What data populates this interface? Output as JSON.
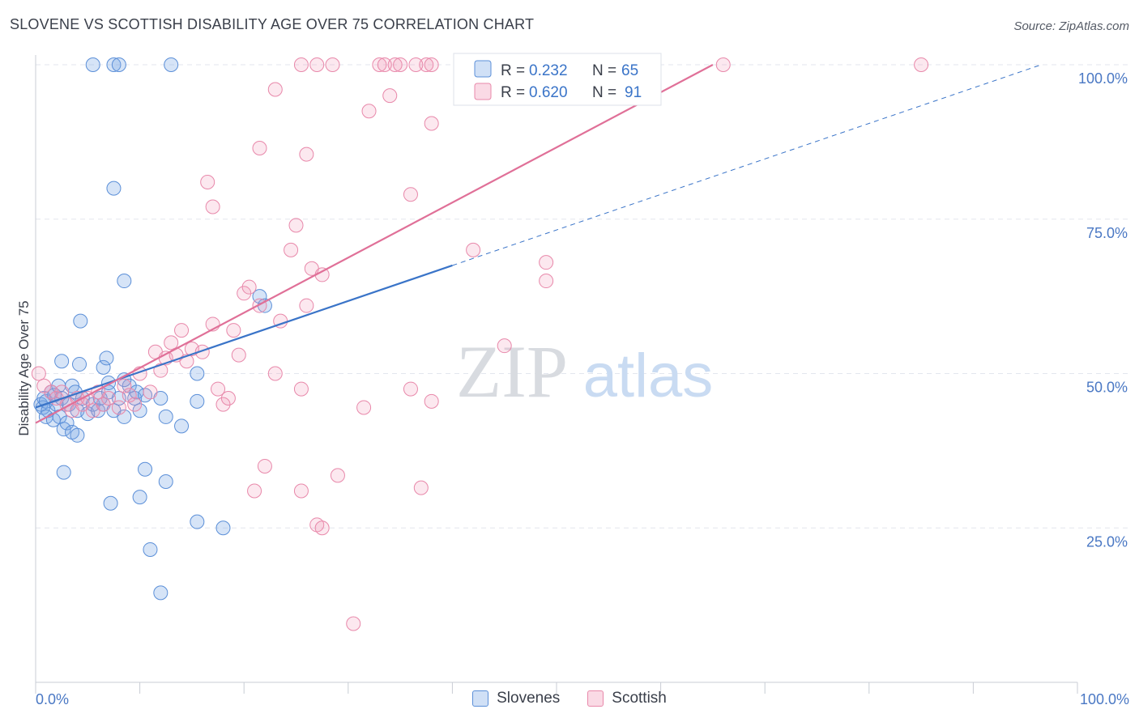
{
  "header": {
    "title": "SLOVENE VS SCOTTISH DISABILITY AGE OVER 75 CORRELATION CHART",
    "source": "Source: ZipAtlas.com"
  },
  "watermark": {
    "zip": "ZIP",
    "atlas": "atlas"
  },
  "colors": {
    "blue": "#5b8fd8",
    "blue_fill": "rgba(120,165,230,0.30)",
    "blue_line": "#3a74c8",
    "pink": "#e888aa",
    "pink_fill": "rgba(240,150,180,0.22)",
    "pink_line": "#e07098",
    "tick": "#4a78c4",
    "grid": "#e3e6ee"
  },
  "chart_data": {
    "type": "scatter",
    "title": "SLOVENE VS SCOTTISH DISABILITY AGE OVER 75 CORRELATION CHART",
    "xlabel": "",
    "ylabel": "Disability Age Over 75",
    "xlim": [
      0,
      100
    ],
    "ylim": [
      0,
      100
    ],
    "x_tick_labels": [
      "0.0%",
      "100.0%"
    ],
    "y_ticks": [
      {
        "value": 25,
        "label": "25.0%"
      },
      {
        "value": 50,
        "label": "50.0%"
      },
      {
        "value": 75,
        "label": "75.0%"
      },
      {
        "value": 100,
        "label": "100.0%"
      }
    ],
    "grid": true,
    "legend_position": "top-center",
    "series": [
      {
        "name": "Slovenes",
        "color": "#5b8fd8",
        "R": "0.232",
        "N": "65",
        "trend": {
          "x0": 0,
          "y0": 44.5,
          "x1": 100,
          "y1": 102.0,
          "solid_until": 40
        },
        "points": [
          [
            0.5,
            45
          ],
          [
            0.7,
            44.5
          ],
          [
            0.8,
            46
          ],
          [
            1,
            45.5
          ],
          [
            1.2,
            44
          ],
          [
            1.5,
            47
          ],
          [
            1.8,
            46.5
          ],
          [
            2,
            45
          ],
          [
            2.2,
            48
          ],
          [
            2.5,
            46
          ],
          [
            1,
            43
          ],
          [
            1.7,
            42.5
          ],
          [
            2.3,
            43
          ],
          [
            2.7,
            41
          ],
          [
            3,
            42
          ],
          [
            3.2,
            45
          ],
          [
            3.5,
            48
          ],
          [
            3.8,
            47
          ],
          [
            4,
            44
          ],
          [
            4.5,
            46
          ],
          [
            5,
            43.5
          ],
          [
            5.5,
            45
          ],
          [
            6,
            44
          ],
          [
            6.2,
            46
          ],
          [
            6.5,
            45
          ],
          [
            7,
            47
          ],
          [
            7.5,
            44
          ],
          [
            8,
            46
          ],
          [
            8.5,
            43
          ],
          [
            9,
            48
          ],
          [
            9.5,
            46
          ],
          [
            10,
            44
          ],
          [
            3.5,
            40.5
          ],
          [
            4,
            40
          ],
          [
            2.5,
            52
          ],
          [
            4.2,
            51.5
          ],
          [
            4.3,
            58.5
          ],
          [
            6.5,
            51
          ],
          [
            6.8,
            52.5
          ],
          [
            7,
            48.5
          ],
          [
            8.5,
            49
          ],
          [
            9.7,
            47
          ],
          [
            10.5,
            46.5
          ],
          [
            12,
            46
          ],
          [
            12.5,
            43
          ],
          [
            14,
            41.5
          ],
          [
            15.5,
            45.5
          ],
          [
            15.5,
            50
          ],
          [
            8.5,
            65
          ],
          [
            2.7,
            34
          ],
          [
            7.2,
            29
          ],
          [
            10,
            30
          ],
          [
            10.5,
            34.5
          ],
          [
            12.5,
            32.5
          ],
          [
            15.5,
            26
          ],
          [
            18,
            25
          ],
          [
            11,
            21.5
          ],
          [
            12,
            14.5
          ],
          [
            7.5,
            80
          ],
          [
            5.5,
            100
          ],
          [
            7.5,
            100
          ],
          [
            8,
            100
          ],
          [
            13,
            100
          ],
          [
            21.5,
            62.5
          ],
          [
            22,
            61
          ]
        ]
      },
      {
        "name": "Scottish",
        "color": "#e888aa",
        "R": "0.620",
        "N": "91",
        "trend": {
          "x0": 0,
          "y0": 42.0,
          "x1": 65,
          "y1": 100.0,
          "solid_until": 65
        },
        "points": [
          [
            0.3,
            50
          ],
          [
            0.8,
            48
          ],
          [
            1.5,
            47
          ],
          [
            2,
            46
          ],
          [
            2.5,
            47
          ],
          [
            3,
            45
          ],
          [
            3.5,
            44
          ],
          [
            4,
            46
          ],
          [
            4.5,
            45
          ],
          [
            5,
            46
          ],
          [
            5.5,
            44
          ],
          [
            6,
            47
          ],
          [
            6.5,
            45
          ],
          [
            7,
            46
          ],
          [
            8,
            44.5
          ],
          [
            8.5,
            48
          ],
          [
            9,
            46.5
          ],
          [
            9.5,
            45
          ],
          [
            10,
            50
          ],
          [
            11,
            47
          ],
          [
            11.5,
            53.5
          ],
          [
            12,
            50.5
          ],
          [
            12.5,
            52.5
          ],
          [
            13,
            55
          ],
          [
            13.5,
            53
          ],
          [
            14,
            57
          ],
          [
            14.5,
            52
          ],
          [
            15,
            54
          ],
          [
            16,
            53.5
          ],
          [
            17,
            58
          ],
          [
            17.5,
            47.5
          ],
          [
            18,
            45
          ],
          [
            18.5,
            46
          ],
          [
            19,
            57
          ],
          [
            19.5,
            53
          ],
          [
            20,
            63
          ],
          [
            20.5,
            64
          ],
          [
            21.5,
            61
          ],
          [
            23,
            50
          ],
          [
            23.5,
            58.5
          ],
          [
            26,
            61
          ],
          [
            26.5,
            67
          ],
          [
            27.5,
            66
          ],
          [
            24.5,
            70
          ],
          [
            25,
            74
          ],
          [
            22,
            35
          ],
          [
            21,
            31
          ],
          [
            25.5,
            31
          ],
          [
            27,
            25.5
          ],
          [
            27.5,
            25
          ],
          [
            29,
            33.5
          ],
          [
            30.5,
            9.5
          ],
          [
            31.5,
            44.5
          ],
          [
            36,
            47.5
          ],
          [
            37,
            31.5
          ],
          [
            38,
            45.5
          ],
          [
            42,
            70
          ],
          [
            45,
            54.5
          ],
          [
            49,
            65
          ],
          [
            49,
            68
          ],
          [
            25.5,
            47.5
          ],
          [
            17,
            77
          ],
          [
            16.5,
            81
          ],
          [
            21.5,
            86.5
          ],
          [
            26,
            85.5
          ],
          [
            23,
            96
          ],
          [
            32,
            92.5
          ],
          [
            34,
            95
          ],
          [
            36,
            79
          ],
          [
            38,
            90.5
          ],
          [
            27,
            100
          ],
          [
            28.5,
            100
          ],
          [
            33,
            100
          ],
          [
            34.5,
            100
          ],
          [
            37.5,
            100
          ],
          [
            38,
            100
          ],
          [
            42,
            100
          ],
          [
            47,
            100
          ],
          [
            66,
            100
          ],
          [
            85,
            100
          ],
          [
            56,
            100
          ],
          [
            59,
            100
          ],
          [
            33.5,
            100
          ],
          [
            35,
            100
          ],
          [
            25.5,
            100
          ],
          [
            36.5,
            100
          ],
          [
            48.5,
            100
          ],
          [
            51,
            100
          ],
          [
            53,
            100
          ],
          [
            55,
            100
          ],
          [
            44.5,
            100
          ]
        ]
      }
    ]
  },
  "legend": {
    "rows": [
      {
        "r_label": "R =",
        "r_value": "0.232",
        "n_label": "N =",
        "n_value": "65"
      },
      {
        "r_label": "R =",
        "r_value": "0.620",
        "n_label": "N =",
        "n_value": "91"
      }
    ]
  }
}
